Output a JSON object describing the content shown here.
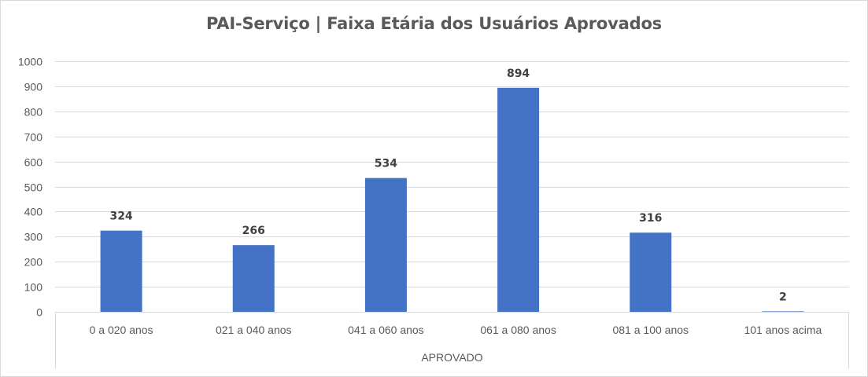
{
  "chart_data": {
    "type": "bar",
    "title": "PAI-Serviço | Faixa Etária dos Usuários Aprovados",
    "group_label": "APROVADO",
    "categories": [
      "0 a 020 anos",
      "021 a 040 anos",
      "041 a 060 anos",
      "061 a 080 anos",
      "081 a 100 anos",
      "101 anos acima"
    ],
    "values": [
      324,
      266,
      534,
      894,
      316,
      2
    ],
    "ylim": [
      0,
      1000
    ],
    "yticks": [
      0,
      100,
      200,
      300,
      400,
      500,
      600,
      700,
      800,
      900,
      1000
    ],
    "grid": true,
    "legend": "none",
    "bar_color": "#4472c4",
    "gridline_color": "#d9d9d9"
  }
}
